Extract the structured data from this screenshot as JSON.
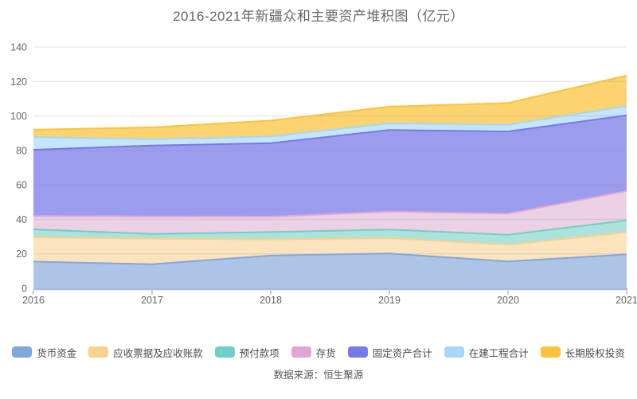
{
  "colors": {
    "background": "#ffffff",
    "title_text": "#666666",
    "axis_label_text": "#666666",
    "axis_line": "#a9b9df",
    "tick_mark": "#8f8f8f",
    "grid_overlay": "rgba(130,142,178,0.28)"
  },
  "chart_data": {
    "type": "area",
    "stacked": true,
    "title": "2016-2021年新疆众和主要资产堆积图（亿元）",
    "source": "数据来源：恒生聚源",
    "x": [
      "2016",
      "2017",
      "2018",
      "2019",
      "2020",
      "2021"
    ],
    "xlabel": "",
    "ylabel": "",
    "ylim": [
      0,
      140
    ],
    "y_ticks": [
      0,
      20,
      40,
      60,
      80,
      100,
      120,
      140
    ],
    "grid": true,
    "legend_position": "bottom",
    "series": [
      {
        "name": "货币资金",
        "color": "#82a7db",
        "fill": "#aec4e7",
        "values": [
          15.5,
          14.0,
          19.0,
          20.2,
          15.6,
          19.7
        ]
      },
      {
        "name": "应收票据及应收账款",
        "color": "#f9d08c",
        "fill": "#fbe4bd",
        "values": [
          14.1,
          14.8,
          9.3,
          8.9,
          9.7,
          12.8
        ]
      },
      {
        "name": "预付款项",
        "color": "#72cec4",
        "fill": "#ace2dc",
        "values": [
          4.6,
          2.7,
          4.3,
          5.0,
          5.7,
          6.9
        ]
      },
      {
        "name": "存货",
        "color": "#e0a6d6",
        "fill": "#ecd0e4",
        "values": [
          7.8,
          10.2,
          9.0,
          10.4,
          12.3,
          17.0
        ]
      },
      {
        "name": "固定资产合计",
        "color": "#7879e8",
        "fill": "#9c9cef",
        "values": [
          38.4,
          41.1,
          42.6,
          47.3,
          47.7,
          43.9
        ]
      },
      {
        "name": "在建工程合计",
        "color": "#a6d7f7",
        "fill": "#c4e5fa",
        "values": [
          7.4,
          3.7,
          3.9,
          3.9,
          3.9,
          5.4
        ]
      },
      {
        "name": "长期股权投资",
        "color": "#fbc340",
        "fill": "#fcd36e",
        "values": [
          4.2,
          6.9,
          9.2,
          9.7,
          12.6,
          17.7
        ]
      }
    ]
  }
}
